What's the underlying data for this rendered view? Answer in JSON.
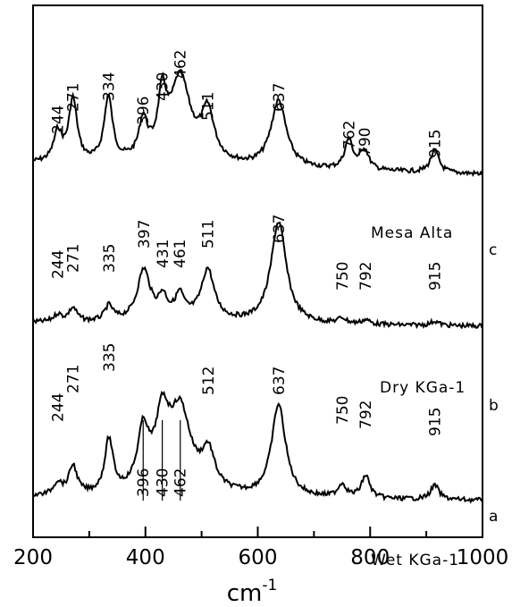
{
  "chart_data": {
    "type": "line",
    "xlabel": "cm",
    "xlabel_superscript": "-1",
    "xlim": [
      200,
      1000
    ],
    "xticks": [
      200,
      400,
      600,
      800,
      1000
    ],
    "ylabel": "",
    "grid": false,
    "series": [
      {
        "name": "Mesa Alta",
        "letter": "c",
        "peaks": [
          {
            "label": "244",
            "x": 244,
            "h": 0.26
          },
          {
            "label": "271",
            "x": 271,
            "h": 0.56
          },
          {
            "label": "334",
            "x": 334,
            "h": 0.58
          },
          {
            "label": "396",
            "x": 396,
            "h": 0.33
          },
          {
            "label": "430",
            "x": 430,
            "h": 0.5
          },
          {
            "label": "462",
            "x": 462,
            "h": 0.72
          },
          {
            "label": "511",
            "x": 511,
            "h": 0.42
          },
          {
            "label": "637",
            "x": 637,
            "h": 0.6
          },
          {
            "label": "762",
            "x": 762,
            "h": 0.26
          },
          {
            "label": "790",
            "x": 790,
            "h": 0.18
          },
          {
            "label": "915",
            "x": 915,
            "h": 0.2
          }
        ]
      },
      {
        "name": "Dry KGa-1",
        "letter": "b",
        "peaks": [
          {
            "label": "244",
            "x": 244,
            "h": 0.07
          },
          {
            "label": "271",
            "x": 271,
            "h": 0.13
          },
          {
            "label": "335",
            "x": 335,
            "h": 0.14
          },
          {
            "label": "397",
            "x": 397,
            "h": 0.46
          },
          {
            "label": "431",
            "x": 431,
            "h": 0.18
          },
          {
            "label": "461",
            "x": 461,
            "h": 0.2
          },
          {
            "label": "511",
            "x": 511,
            "h": 0.46
          },
          {
            "label": "637",
            "x": 637,
            "h": 0.95
          },
          {
            "label": "750",
            "x": 750,
            "h": 0.05
          },
          {
            "label": "792",
            "x": 792,
            "h": 0.04
          },
          {
            "label": "915",
            "x": 915,
            "h": 0.04
          }
        ]
      },
      {
        "name": "Wet KGa-1",
        "letter": "a",
        "peaks": [
          {
            "label": "244",
            "x": 244,
            "h": 0.12
          },
          {
            "label": "271",
            "x": 271,
            "h": 0.28
          },
          {
            "label": "335",
            "x": 335,
            "h": 0.52
          },
          {
            "label": "396",
            "x": 396,
            "h": 0.55
          },
          {
            "label": "430",
            "x": 430,
            "h": 0.64
          },
          {
            "label": "462",
            "x": 462,
            "h": 0.75
          },
          {
            "label": "512",
            "x": 512,
            "h": 0.35
          },
          {
            "label": "637",
            "x": 637,
            "h": 0.9
          },
          {
            "label": "750",
            "x": 750,
            "h": 0.13
          },
          {
            "label": "792",
            "x": 792,
            "h": 0.22
          },
          {
            "label": "915",
            "x": 915,
            "h": 0.14
          }
        ]
      }
    ]
  }
}
